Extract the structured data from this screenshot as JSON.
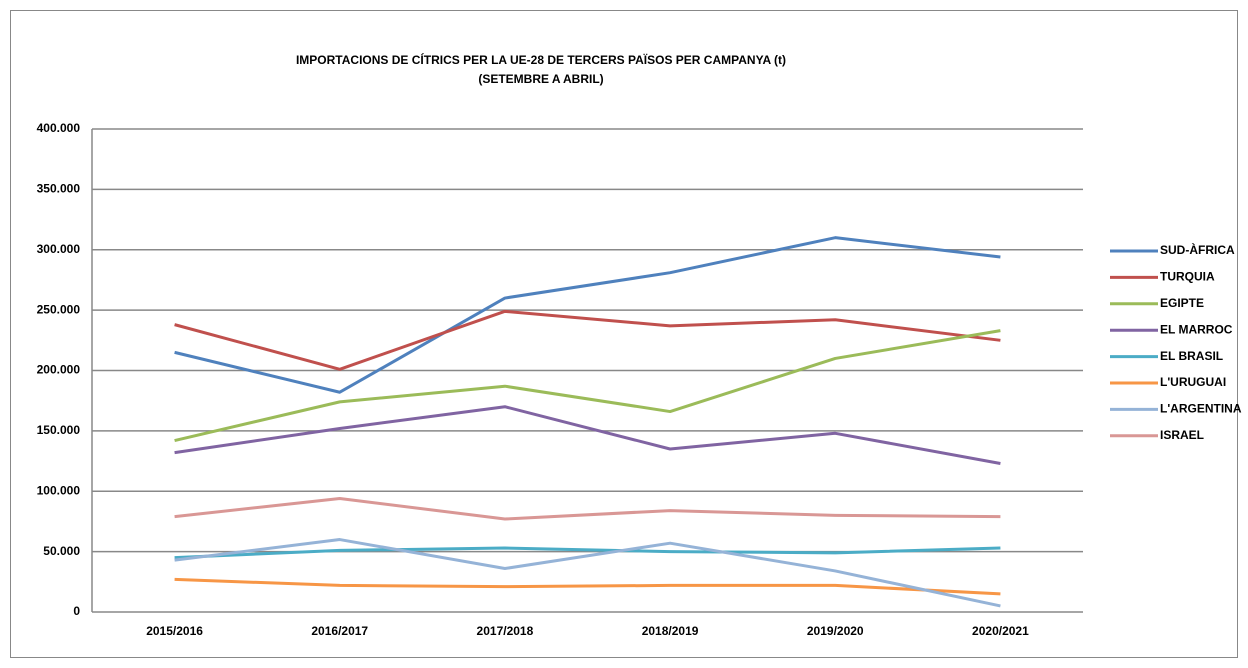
{
  "chart_data": {
    "type": "line",
    "title": "IMPORTACIONS DE CÍTRICS PER LA UE-28 DE TERCERS PAÏSOS PER CAMPANYA  (t)",
    "subtitle": "(SETEMBRE A ABRIL)",
    "categories": [
      "2015/2016",
      "2016/2017",
      "2017/2018",
      "2018/2019",
      "2019/2020",
      "2020/2021"
    ],
    "series": [
      {
        "name": "SUD-ÀFRICA",
        "color": "#4f81bd",
        "values": [
          215000,
          182000,
          260000,
          281000,
          310000,
          294000
        ]
      },
      {
        "name": "TURQUIA",
        "color": "#c0504d",
        "values": [
          238000,
          201000,
          249000,
          237000,
          242000,
          225000
        ]
      },
      {
        "name": "EGIPTE",
        "color": "#9bbb59",
        "values": [
          142000,
          174000,
          187000,
          166000,
          210000,
          233000
        ]
      },
      {
        "name": "EL MARROC",
        "color": "#8064a2",
        "values": [
          132000,
          152000,
          170000,
          135000,
          148000,
          123000
        ]
      },
      {
        "name": "EL BRASIL",
        "color": "#4bacc6",
        "values": [
          45000,
          51000,
          53000,
          50000,
          49000,
          53000
        ]
      },
      {
        "name": "L'URUGUAI",
        "color": "#f79646",
        "values": [
          27000,
          22000,
          21000,
          22000,
          22000,
          15000
        ]
      },
      {
        "name": "L'ARGENTINA",
        "color": "#95b3d7",
        "values": [
          43000,
          60000,
          36000,
          57000,
          34000,
          5000
        ]
      },
      {
        "name": "ISRAEL",
        "color": "#d99795",
        "values": [
          79000,
          94000,
          77000,
          84000,
          80000,
          79000
        ]
      }
    ],
    "ylim": [
      0,
      400000
    ],
    "yticks": [
      0,
      {
        "value": 50000,
        "label": "50.000"
      },
      {
        "value": 100000,
        "label": "100.000"
      },
      {
        "value": 150000,
        "label": "150.000"
      },
      {
        "value": 200000,
        "label": "200.000"
      },
      {
        "value": 250000,
        "label": "250.000"
      },
      {
        "value": 300000,
        "label": "300.000"
      },
      {
        "value": 350000,
        "label": "350.000"
      },
      {
        "value": 400000,
        "label": "400.000"
      }
    ],
    "grid": true,
    "legend": "right"
  }
}
